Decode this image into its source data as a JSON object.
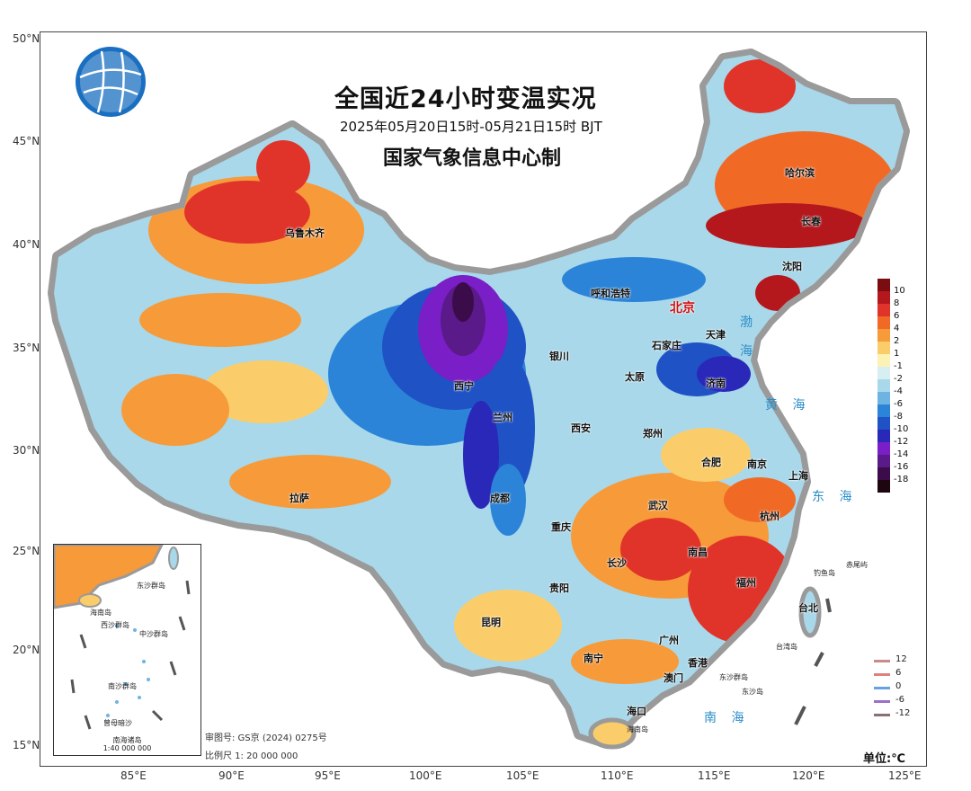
{
  "title": "全国近24小时变温实况",
  "subtitle": "2025年05月20日15时-05月21日15时  BJT",
  "org": "国家气象信息中心制",
  "axes": {
    "lat": [
      "50°N",
      "45°N",
      "40°N",
      "35°N",
      "30°N",
      "25°N",
      "20°N",
      "15°N"
    ],
    "lon": [
      "85°E",
      "90°E",
      "95°E",
      "100°E",
      "105°E",
      "110°E",
      "115°E",
      "120°E",
      "125°E"
    ]
  },
  "cities": [
    {
      "name": "哈尔滨"
    },
    {
      "name": "长春"
    },
    {
      "name": "沈阳"
    },
    {
      "name": "乌鲁木齐"
    },
    {
      "name": "呼和浩特"
    },
    {
      "name": "北京"
    },
    {
      "name": "天津"
    },
    {
      "name": "石家庄"
    },
    {
      "name": "太原"
    },
    {
      "name": "济南"
    },
    {
      "name": "银川"
    },
    {
      "name": "西宁"
    },
    {
      "name": "兰州"
    },
    {
      "name": "西安"
    },
    {
      "name": "郑州"
    },
    {
      "name": "合肥"
    },
    {
      "name": "南京"
    },
    {
      "name": "上海"
    },
    {
      "name": "杭州"
    },
    {
      "name": "武汉"
    },
    {
      "name": "成都"
    },
    {
      "name": "重庆"
    },
    {
      "name": "拉萨"
    },
    {
      "name": "长沙"
    },
    {
      "name": "南昌"
    },
    {
      "name": "福州"
    },
    {
      "name": "贵阳"
    },
    {
      "name": "昆明"
    },
    {
      "name": "南宁"
    },
    {
      "name": "广州"
    },
    {
      "name": "香港"
    },
    {
      "name": "澳门"
    },
    {
      "name": "海口"
    },
    {
      "name": "台北"
    }
  ],
  "seas": {
    "bohai": "渤",
    "bohai2": "海",
    "huanghai": "黄  海",
    "donghai": "东  海",
    "nanhai": "南  海"
  },
  "islands": {
    "diaoyu": "钓鱼岛",
    "chiwei": "赤尾屿",
    "taiwan": "台湾岛",
    "dongsha": "东沙群岛",
    "dongsha2": "东沙岛",
    "hainan": "海南岛"
  },
  "inset": {
    "title": "南海诸岛",
    "scale": "1:40 000 000",
    "labels": [
      "海南岛",
      "西沙群岛",
      "中沙群岛",
      "南沙群岛",
      "曾母暗沙",
      "东沙群岛"
    ]
  },
  "footer": {
    "review": "审图号: GS京 (2024) 0275号",
    "scale": "比例尺  1: 20 000 000"
  },
  "unit": "单位:℃",
  "legend": {
    "labels": [
      "10",
      "8",
      "6",
      "4",
      "2",
      "1",
      "-1",
      "-2",
      "-4",
      "-6",
      "-8",
      "-10",
      "-12",
      "-14",
      "-16",
      "-18"
    ],
    "colors": [
      "#7a0d10",
      "#b5181c",
      "#e0342a",
      "#f06a26",
      "#f79a39",
      "#fbcd6a",
      "#fdf2b5",
      "#d7eef2",
      "#a9d8ea",
      "#6eb4e2",
      "#2b84d8",
      "#1f52c4",
      "#2a28b8",
      "#7a1ec8",
      "#5a1a8a",
      "#3c0c4a",
      "#1e0610"
    ]
  },
  "contour_legend": [
    {
      "label": "12",
      "color": "#c98a8a"
    },
    {
      "label": "6",
      "color": "#e08080"
    },
    {
      "label": "0",
      "color": "#6aa0e0"
    },
    {
      "label": "-6",
      "color": "#9a70c8"
    },
    {
      "label": "-12",
      "color": "#8a7070"
    }
  ]
}
